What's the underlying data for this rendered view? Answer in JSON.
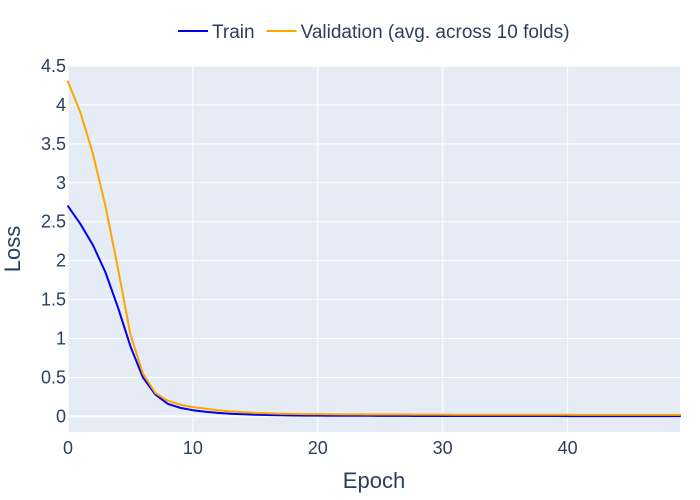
{
  "chart_data": {
    "type": "line",
    "xlabel": "Epoch",
    "ylabel": "Loss",
    "xlim": [
      0,
      49
    ],
    "ylim": [
      -0.2,
      4.5
    ],
    "xticks": [
      0,
      10,
      20,
      30,
      40
    ],
    "yticks": [
      0,
      0.5,
      1,
      1.5,
      2,
      2.5,
      3,
      3.5,
      4,
      4.5
    ],
    "ytick_labels": [
      "0",
      "0.5",
      "1",
      "1.5",
      "2",
      "2.5",
      "3",
      "3.5",
      "4",
      "4.5"
    ],
    "grid": true,
    "legend": "top-center",
    "plot_bgcolor": "#e5ecf6",
    "grid_color": "#ffffff",
    "text_color": "#2a3f5f",
    "x": [
      0,
      1,
      2,
      3,
      4,
      5,
      6,
      7,
      8,
      9,
      10,
      11,
      12,
      13,
      14,
      15,
      16,
      17,
      18,
      19,
      20,
      21,
      22,
      23,
      24,
      25,
      26,
      27,
      28,
      29,
      30,
      31,
      32,
      33,
      34,
      35,
      36,
      37,
      38,
      39,
      40,
      41,
      42,
      43,
      44,
      45,
      46,
      47,
      48,
      49
    ],
    "series": [
      {
        "name": "Train",
        "color": "#0000ee",
        "values": [
          2.7,
          2.47,
          2.2,
          1.85,
          1.4,
          0.9,
          0.5,
          0.28,
          0.16,
          0.11,
          0.08,
          0.06,
          0.045,
          0.035,
          0.028,
          0.022,
          0.018,
          0.015,
          0.012,
          0.011,
          0.01,
          0.009,
          0.009,
          0.008,
          0.008,
          0.007,
          0.007,
          0.007,
          0.006,
          0.006,
          0.006,
          0.006,
          0.005,
          0.005,
          0.005,
          0.005,
          0.005,
          0.005,
          0.005,
          0.005,
          0.004,
          0.004,
          0.004,
          0.004,
          0.004,
          0.004,
          0.004,
          0.004,
          0.004,
          0.004
        ]
      },
      {
        "name": "Validation (avg. across 10 folds)",
        "color": "#ffa500",
        "values": [
          4.3,
          3.9,
          3.37,
          2.7,
          1.9,
          1.05,
          0.55,
          0.3,
          0.2,
          0.15,
          0.12,
          0.1,
          0.08,
          0.065,
          0.055,
          0.045,
          0.04,
          0.035,
          0.032,
          0.03,
          0.029,
          0.028,
          0.027,
          0.026,
          0.025,
          0.025,
          0.024,
          0.024,
          0.023,
          0.023,
          0.023,
          0.022,
          0.022,
          0.022,
          0.022,
          0.021,
          0.021,
          0.021,
          0.021,
          0.021,
          0.021,
          0.02,
          0.02,
          0.02,
          0.02,
          0.02,
          0.02,
          0.02,
          0.02,
          0.02
        ]
      }
    ]
  }
}
